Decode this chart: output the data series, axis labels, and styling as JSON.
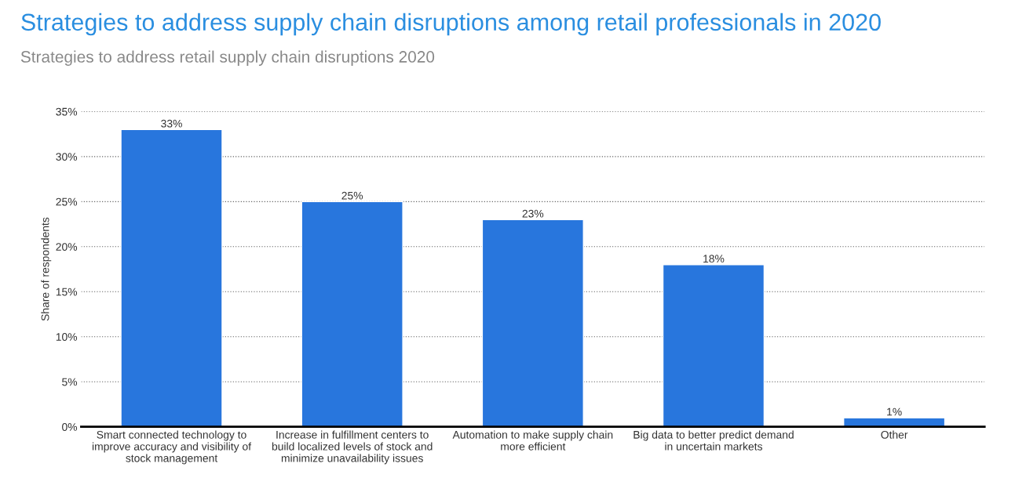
{
  "chart_data": {
    "type": "bar",
    "title": "Strategies to address supply chain disruptions among retail professionals in 2020",
    "subtitle": "Strategies to address retail supply chain disruptions 2020",
    "ylabel": "Share of respondents",
    "categories": [
      "Smart connected technology to\nimprove accuracy and visibility of\nstock management",
      "Increase in fulfillment centers to\nbuild localized levels of stock and\nminimize unavailability issues",
      "Automation to make supply chain\nmore efficient",
      "Big data to better predict demand\nin uncertain markets",
      "Other"
    ],
    "values": [
      33,
      25,
      23,
      18,
      1
    ],
    "value_labels": [
      "33%",
      "25%",
      "23%",
      "18%",
      "1%"
    ],
    "color": "#2876dd",
    "ylim": [
      0,
      35
    ],
    "yticks": [
      {
        "value": 0,
        "label": "0%"
      },
      {
        "value": 5,
        "label": "5%"
      },
      {
        "value": 10,
        "label": "10%"
      },
      {
        "value": 15,
        "label": "15%"
      },
      {
        "value": 20,
        "label": "20%"
      },
      {
        "value": 25,
        "label": "25%"
      },
      {
        "value": 30,
        "label": "30%"
      },
      {
        "value": 35,
        "label": "35%"
      }
    ],
    "grid": "y"
  }
}
